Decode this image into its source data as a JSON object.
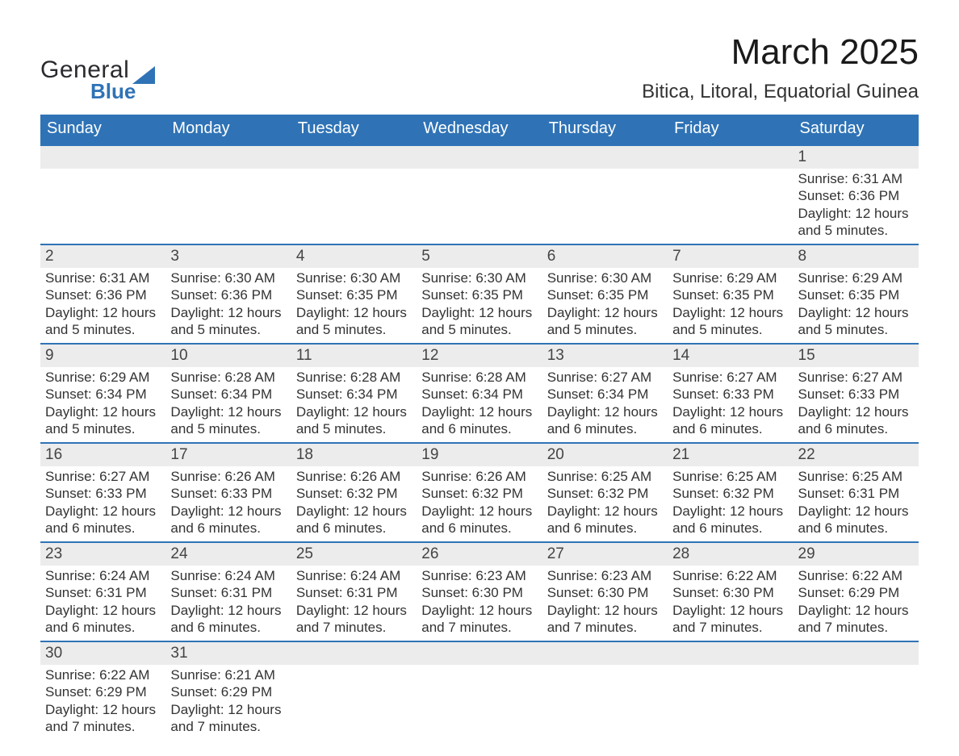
{
  "colors": {
    "header_bg": "#2f73b6",
    "header_text": "#ffffff",
    "daynum_bg": "#ececec",
    "row_separator": "#2f73b6",
    "logo_accent": "#2f73b6",
    "logo_text": "#2a2a2f"
  },
  "logo": {
    "line1": "General",
    "line2": "Blue"
  },
  "title": "March 2025",
  "location": "Bitica, Litoral, Equatorial Guinea",
  "day_headers": [
    "Sunday",
    "Monday",
    "Tuesday",
    "Wednesday",
    "Thursday",
    "Friday",
    "Saturday"
  ],
  "weeks": [
    [
      null,
      null,
      null,
      null,
      null,
      null,
      {
        "n": "1",
        "sunrise": "6:31 AM",
        "sunset": "6:36 PM",
        "daylight": "12 hours and 5 minutes."
      }
    ],
    [
      {
        "n": "2",
        "sunrise": "6:31 AM",
        "sunset": "6:36 PM",
        "daylight": "12 hours and 5 minutes."
      },
      {
        "n": "3",
        "sunrise": "6:30 AM",
        "sunset": "6:36 PM",
        "daylight": "12 hours and 5 minutes."
      },
      {
        "n": "4",
        "sunrise": "6:30 AM",
        "sunset": "6:35 PM",
        "daylight": "12 hours and 5 minutes."
      },
      {
        "n": "5",
        "sunrise": "6:30 AM",
        "sunset": "6:35 PM",
        "daylight": "12 hours and 5 minutes."
      },
      {
        "n": "6",
        "sunrise": "6:30 AM",
        "sunset": "6:35 PM",
        "daylight": "12 hours and 5 minutes."
      },
      {
        "n": "7",
        "sunrise": "6:29 AM",
        "sunset": "6:35 PM",
        "daylight": "12 hours and 5 minutes."
      },
      {
        "n": "8",
        "sunrise": "6:29 AM",
        "sunset": "6:35 PM",
        "daylight": "12 hours and 5 minutes."
      }
    ],
    [
      {
        "n": "9",
        "sunrise": "6:29 AM",
        "sunset": "6:34 PM",
        "daylight": "12 hours and 5 minutes."
      },
      {
        "n": "10",
        "sunrise": "6:28 AM",
        "sunset": "6:34 PM",
        "daylight": "12 hours and 5 minutes."
      },
      {
        "n": "11",
        "sunrise": "6:28 AM",
        "sunset": "6:34 PM",
        "daylight": "12 hours and 5 minutes."
      },
      {
        "n": "12",
        "sunrise": "6:28 AM",
        "sunset": "6:34 PM",
        "daylight": "12 hours and 6 minutes."
      },
      {
        "n": "13",
        "sunrise": "6:27 AM",
        "sunset": "6:34 PM",
        "daylight": "12 hours and 6 minutes."
      },
      {
        "n": "14",
        "sunrise": "6:27 AM",
        "sunset": "6:33 PM",
        "daylight": "12 hours and 6 minutes."
      },
      {
        "n": "15",
        "sunrise": "6:27 AM",
        "sunset": "6:33 PM",
        "daylight": "12 hours and 6 minutes."
      }
    ],
    [
      {
        "n": "16",
        "sunrise": "6:27 AM",
        "sunset": "6:33 PM",
        "daylight": "12 hours and 6 minutes."
      },
      {
        "n": "17",
        "sunrise": "6:26 AM",
        "sunset": "6:33 PM",
        "daylight": "12 hours and 6 minutes."
      },
      {
        "n": "18",
        "sunrise": "6:26 AM",
        "sunset": "6:32 PM",
        "daylight": "12 hours and 6 minutes."
      },
      {
        "n": "19",
        "sunrise": "6:26 AM",
        "sunset": "6:32 PM",
        "daylight": "12 hours and 6 minutes."
      },
      {
        "n": "20",
        "sunrise": "6:25 AM",
        "sunset": "6:32 PM",
        "daylight": "12 hours and 6 minutes."
      },
      {
        "n": "21",
        "sunrise": "6:25 AM",
        "sunset": "6:32 PM",
        "daylight": "12 hours and 6 minutes."
      },
      {
        "n": "22",
        "sunrise": "6:25 AM",
        "sunset": "6:31 PM",
        "daylight": "12 hours and 6 minutes."
      }
    ],
    [
      {
        "n": "23",
        "sunrise": "6:24 AM",
        "sunset": "6:31 PM",
        "daylight": "12 hours and 6 minutes."
      },
      {
        "n": "24",
        "sunrise": "6:24 AM",
        "sunset": "6:31 PM",
        "daylight": "12 hours and 6 minutes."
      },
      {
        "n": "25",
        "sunrise": "6:24 AM",
        "sunset": "6:31 PM",
        "daylight": "12 hours and 7 minutes."
      },
      {
        "n": "26",
        "sunrise": "6:23 AM",
        "sunset": "6:30 PM",
        "daylight": "12 hours and 7 minutes."
      },
      {
        "n": "27",
        "sunrise": "6:23 AM",
        "sunset": "6:30 PM",
        "daylight": "12 hours and 7 minutes."
      },
      {
        "n": "28",
        "sunrise": "6:22 AM",
        "sunset": "6:30 PM",
        "daylight": "12 hours and 7 minutes."
      },
      {
        "n": "29",
        "sunrise": "6:22 AM",
        "sunset": "6:29 PM",
        "daylight": "12 hours and 7 minutes."
      }
    ],
    [
      {
        "n": "30",
        "sunrise": "6:22 AM",
        "sunset": "6:29 PM",
        "daylight": "12 hours and 7 minutes."
      },
      {
        "n": "31",
        "sunrise": "6:21 AM",
        "sunset": "6:29 PM",
        "daylight": "12 hours and 7 minutes."
      },
      null,
      null,
      null,
      null,
      null
    ]
  ],
  "labels": {
    "sunrise": "Sunrise: ",
    "sunset": "Sunset: ",
    "daylight": "Daylight: "
  }
}
